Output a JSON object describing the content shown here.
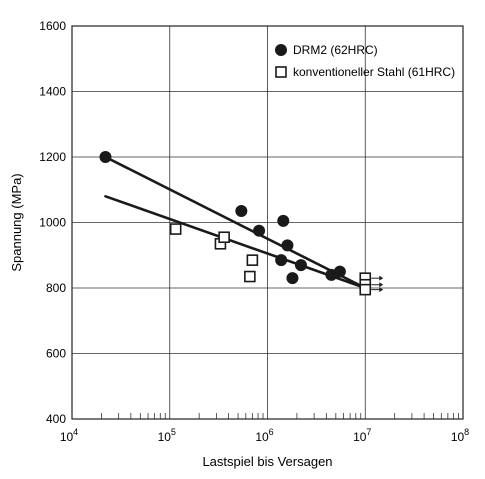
{
  "chart_data": {
    "type": "scatter",
    "xlabel": "Lastspiel bis Versagen",
    "ylabel": "Spannung (MPa)",
    "xscale": "log",
    "xlim": [
      10000,
      100000000
    ],
    "ylim": [
      400,
      1600
    ],
    "x_ticks": [
      10000,
      100000,
      1000000,
      10000000,
      100000000
    ],
    "x_tick_labels": [
      {
        "base": "10",
        "exp": "4"
      },
      {
        "base": "10",
        "exp": "5"
      },
      {
        "base": "10",
        "exp": "6"
      },
      {
        "base": "10",
        "exp": "7"
      },
      {
        "base": "10",
        "exp": "8"
      }
    ],
    "y_ticks": [
      400,
      600,
      800,
      1000,
      1200,
      1400,
      1600
    ],
    "y_tick_labels": [
      "400",
      "600",
      "800",
      "1000",
      "1200",
      "1400",
      "1600"
    ],
    "grid": true,
    "legend_position": "top-right",
    "series": [
      {
        "name": "DRM2 (62HRC)",
        "marker": "filled-circle",
        "color": "#1a1a1a",
        "points": [
          [
            22000,
            1200
          ],
          [
            540000,
            1035
          ],
          [
            820000,
            975
          ],
          [
            1450000,
            1005
          ],
          [
            1600000,
            930
          ],
          [
            1380000,
            885
          ],
          [
            2200000,
            870
          ],
          [
            1800000,
            830
          ],
          [
            4500000,
            840
          ],
          [
            5500000,
            850
          ]
        ],
        "trend": [
          [
            22000,
            1200
          ],
          [
            10000000,
            800
          ]
        ]
      },
      {
        "name": "konventioneller Stahl (61HRC)",
        "marker": "open-square",
        "color": "#1a1a1a",
        "points": [
          [
            115000,
            980
          ],
          [
            330000,
            935
          ],
          [
            360000,
            955
          ],
          [
            700000,
            885
          ],
          [
            660000,
            835
          ],
          [
            10000000,
            830
          ],
          [
            10000000,
            810
          ],
          [
            10000000,
            795
          ]
        ],
        "runouts": [
          [
            10000000,
            830
          ],
          [
            10000000,
            810
          ],
          [
            10000000,
            795
          ]
        ],
        "trend": [
          [
            22000,
            1080
          ],
          [
            10000000,
            800
          ]
        ]
      }
    ]
  }
}
